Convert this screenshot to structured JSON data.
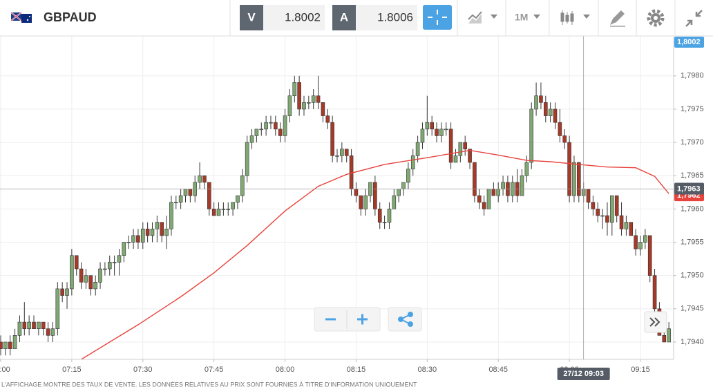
{
  "header": {
    "symbol": "GBPAUD",
    "sell_label": "V",
    "sell_price": "1.8002",
    "buy_label": "A",
    "buy_price": "1.8006",
    "timeframe": "1M"
  },
  "chart_data": {
    "type": "candlestick",
    "x": [
      "07:00",
      "07:01",
      "07:02",
      "07:03",
      "07:04",
      "07:05",
      "07:06",
      "07:07",
      "07:08",
      "07:09",
      "07:10",
      "07:11",
      "07:12",
      "07:13",
      "07:14",
      "07:15",
      "07:16",
      "07:17",
      "07:18",
      "07:19",
      "07:20",
      "07:21",
      "07:22",
      "07:23",
      "07:24",
      "07:25",
      "07:26",
      "07:27",
      "07:28",
      "07:29",
      "07:30",
      "07:31",
      "07:32",
      "07:33",
      "07:34",
      "07:35",
      "07:36",
      "07:37",
      "07:38",
      "07:39",
      "07:40",
      "07:41",
      "07:42",
      "07:43",
      "07:44",
      "07:45",
      "07:46",
      "07:47",
      "07:48",
      "07:49",
      "07:50",
      "07:51",
      "07:52",
      "07:53",
      "07:54",
      "07:55",
      "07:56",
      "07:57",
      "07:58",
      "07:59",
      "08:00",
      "08:01",
      "08:02",
      "08:03",
      "08:04",
      "08:05",
      "08:06",
      "08:07",
      "08:08",
      "08:09",
      "08:10",
      "08:11",
      "08:12",
      "08:13",
      "08:14",
      "08:15",
      "08:16",
      "08:17",
      "08:18",
      "08:19",
      "08:20",
      "08:21",
      "08:22",
      "08:23",
      "08:24",
      "08:25",
      "08:26",
      "08:27",
      "08:28",
      "08:29",
      "08:30",
      "08:31",
      "08:32",
      "08:33",
      "08:34",
      "08:35",
      "08:36",
      "08:37",
      "08:38",
      "08:39",
      "08:40",
      "08:41",
      "08:42",
      "08:43",
      "08:44",
      "08:45",
      "08:46",
      "08:47",
      "08:48",
      "08:49",
      "08:50",
      "08:51",
      "08:52",
      "08:53",
      "08:54",
      "08:55",
      "08:56",
      "08:57",
      "08:58",
      "08:59",
      "09:00",
      "09:01",
      "09:02",
      "09:03",
      "09:04",
      "09:05",
      "09:06",
      "09:07",
      "09:08",
      "09:09",
      "09:10",
      "09:11",
      "09:12",
      "09:13",
      "09:14",
      "09:15",
      "09:16",
      "09:17",
      "09:18",
      "09:19",
      "09:20",
      "09:21"
    ],
    "ohlc": [
      [
        1.794,
        1.7941,
        1.7938,
        1.7939
      ],
      [
        1.7939,
        1.794,
        1.7938,
        1.794
      ],
      [
        1.794,
        1.7941,
        1.7938,
        1.7939
      ],
      [
        1.7939,
        1.7942,
        1.7939,
        1.7941
      ],
      [
        1.7941,
        1.7944,
        1.794,
        1.7943
      ],
      [
        1.7943,
        1.7946,
        1.7941,
        1.7942
      ],
      [
        1.7942,
        1.7944,
        1.7941,
        1.7943
      ],
      [
        1.7943,
        1.7944,
        1.7942,
        1.7942
      ],
      [
        1.7942,
        1.7943,
        1.7941,
        1.7943
      ],
      [
        1.7943,
        1.7943,
        1.7941,
        1.7942
      ],
      [
        1.7942,
        1.7943,
        1.794,
        1.7941
      ],
      [
        1.7941,
        1.7943,
        1.794,
        1.7942
      ],
      [
        1.7942,
        1.7949,
        1.7941,
        1.7948
      ],
      [
        1.7948,
        1.7949,
        1.7946,
        1.7947
      ],
      [
        1.7947,
        1.7949,
        1.7945,
        1.7948
      ],
      [
        1.7948,
        1.7954,
        1.7947,
        1.7953
      ],
      [
        1.7953,
        1.7953,
        1.795,
        1.7951
      ],
      [
        1.7951,
        1.7952,
        1.7948,
        1.7949
      ],
      [
        1.7949,
        1.7951,
        1.7948,
        1.795
      ],
      [
        1.795,
        1.795,
        1.7947,
        1.7948
      ],
      [
        1.7948,
        1.795,
        1.7947,
        1.7949
      ],
      [
        1.7949,
        1.7952,
        1.7948,
        1.7951
      ],
      [
        1.7951,
        1.7952,
        1.795,
        1.7951
      ],
      [
        1.7951,
        1.7953,
        1.795,
        1.7952
      ],
      [
        1.7952,
        1.7953,
        1.795,
        1.7952
      ],
      [
        1.7952,
        1.7954,
        1.795,
        1.7953
      ],
      [
        1.7953,
        1.7955,
        1.7952,
        1.7955
      ],
      [
        1.7955,
        1.7956,
        1.7954,
        1.7955
      ],
      [
        1.7955,
        1.7957,
        1.7954,
        1.7956
      ],
      [
        1.7956,
        1.7957,
        1.7954,
        1.7955
      ],
      [
        1.7955,
        1.7958,
        1.7954,
        1.7957
      ],
      [
        1.7957,
        1.7958,
        1.7955,
        1.7956
      ],
      [
        1.7956,
        1.7958,
        1.7955,
        1.7957
      ],
      [
        1.7957,
        1.7959,
        1.7955,
        1.7958
      ],
      [
        1.7958,
        1.7958,
        1.7955,
        1.7956
      ],
      [
        1.7956,
        1.7959,
        1.7954,
        1.7957
      ],
      [
        1.7957,
        1.7962,
        1.7956,
        1.7961
      ],
      [
        1.7961,
        1.7962,
        1.796,
        1.7961
      ],
      [
        1.7961,
        1.7963,
        1.796,
        1.7962
      ],
      [
        1.7962,
        1.7963,
        1.7961,
        1.7963
      ],
      [
        1.7963,
        1.7963,
        1.7961,
        1.7962
      ],
      [
        1.7962,
        1.7965,
        1.7961,
        1.7964
      ],
      [
        1.7964,
        1.7967,
        1.7963,
        1.7965
      ],
      [
        1.7965,
        1.7965,
        1.7963,
        1.7964
      ],
      [
        1.7964,
        1.7964,
        1.7959,
        1.796
      ],
      [
        1.796,
        1.7961,
        1.7959,
        1.7959
      ],
      [
        1.7959,
        1.7961,
        1.7959,
        1.796
      ],
      [
        1.796,
        1.7961,
        1.7959,
        1.796
      ],
      [
        1.796,
        1.7961,
        1.7959,
        1.796
      ],
      [
        1.796,
        1.7961,
        1.7959,
        1.7961
      ],
      [
        1.7961,
        1.7962,
        1.796,
        1.7962
      ],
      [
        1.7962,
        1.7966,
        1.7961,
        1.7965
      ],
      [
        1.7965,
        1.7971,
        1.7964,
        1.797
      ],
      [
        1.797,
        1.7972,
        1.7969,
        1.7971
      ],
      [
        1.7971,
        1.7972,
        1.797,
        1.7972
      ],
      [
        1.7972,
        1.7973,
        1.7971,
        1.7972
      ],
      [
        1.7972,
        1.7974,
        1.7971,
        1.7973
      ],
      [
        1.7973,
        1.7974,
        1.7972,
        1.7973
      ],
      [
        1.7973,
        1.7974,
        1.7971,
        1.7972
      ],
      [
        1.7972,
        1.7973,
        1.797,
        1.7971
      ],
      [
        1.7971,
        1.7975,
        1.797,
        1.7974
      ],
      [
        1.7974,
        1.7978,
        1.7973,
        1.7977
      ],
      [
        1.7977,
        1.798,
        1.7976,
        1.7979
      ],
      [
        1.7979,
        1.798,
        1.7974,
        1.7975
      ],
      [
        1.7975,
        1.7977,
        1.7974,
        1.7976
      ],
      [
        1.7976,
        1.7977,
        1.7975,
        1.7976
      ],
      [
        1.7976,
        1.7978,
        1.7975,
        1.7977
      ],
      [
        1.7977,
        1.798,
        1.7975,
        1.7976
      ],
      [
        1.7976,
        1.7976,
        1.7973,
        1.7974
      ],
      [
        1.7974,
        1.7975,
        1.7972,
        1.7973
      ],
      [
        1.7973,
        1.7974,
        1.7967,
        1.7968
      ],
      [
        1.7968,
        1.7969,
        1.7967,
        1.7968
      ],
      [
        1.7968,
        1.797,
        1.7967,
        1.7969
      ],
      [
        1.7969,
        1.7969,
        1.7967,
        1.7968
      ],
      [
        1.7968,
        1.7969,
        1.7962,
        1.7963
      ],
      [
        1.7963,
        1.7964,
        1.7961,
        1.7962
      ],
      [
        1.7962,
        1.7962,
        1.7959,
        1.796
      ],
      [
        1.796,
        1.7963,
        1.7959,
        1.7962
      ],
      [
        1.7962,
        1.7964,
        1.7961,
        1.7964
      ],
      [
        1.7964,
        1.7965,
        1.7959,
        1.796
      ],
      [
        1.796,
        1.7961,
        1.7957,
        1.7958
      ],
      [
        1.7958,
        1.7959,
        1.7957,
        1.7958
      ],
      [
        1.7958,
        1.7961,
        1.7957,
        1.796
      ],
      [
        1.796,
        1.7963,
        1.796,
        1.7962
      ],
      [
        1.7962,
        1.7963,
        1.7961,
        1.7963
      ],
      [
        1.7963,
        1.7964,
        1.7962,
        1.7964
      ],
      [
        1.7964,
        1.7967,
        1.7963,
        1.7966
      ],
      [
        1.7966,
        1.7969,
        1.7965,
        1.7968
      ],
      [
        1.7968,
        1.7971,
        1.7967,
        1.797
      ],
      [
        1.797,
        1.7973,
        1.7969,
        1.7972
      ],
      [
        1.7972,
        1.7977,
        1.7971,
        1.7973
      ],
      [
        1.7973,
        1.7974,
        1.7971,
        1.7972
      ],
      [
        1.7972,
        1.7973,
        1.797,
        1.7971
      ],
      [
        1.7971,
        1.7973,
        1.797,
        1.7972
      ],
      [
        1.7972,
        1.7973,
        1.7971,
        1.7972
      ],
      [
        1.7972,
        1.7973,
        1.7966,
        1.7967
      ],
      [
        1.7967,
        1.7969,
        1.7967,
        1.7968
      ],
      [
        1.7968,
        1.797,
        1.7967,
        1.797
      ],
      [
        1.797,
        1.7971,
        1.7968,
        1.7969
      ],
      [
        1.7969,
        1.7969,
        1.7966,
        1.7967
      ],
      [
        1.7967,
        1.7967,
        1.7961,
        1.7962
      ],
      [
        1.7962,
        1.7963,
        1.796,
        1.7961
      ],
      [
        1.7961,
        1.7962,
        1.7959,
        1.796
      ],
      [
        1.796,
        1.7963,
        1.796,
        1.7963
      ],
      [
        1.7963,
        1.7964,
        1.7962,
        1.7962
      ],
      [
        1.7962,
        1.7964,
        1.7961,
        1.7963
      ],
      [
        1.7963,
        1.7965,
        1.7962,
        1.7964
      ],
      [
        1.7964,
        1.7965,
        1.7961,
        1.7962
      ],
      [
        1.7962,
        1.7965,
        1.7961,
        1.7964
      ],
      [
        1.7964,
        1.7966,
        1.7961,
        1.7962
      ],
      [
        1.7962,
        1.7966,
        1.7962,
        1.7965
      ],
      [
        1.7965,
        1.7968,
        1.7964,
        1.7967
      ],
      [
        1.7967,
        1.7976,
        1.7966,
        1.7975
      ],
      [
        1.7975,
        1.7979,
        1.7974,
        1.7977
      ],
      [
        1.7977,
        1.7979,
        1.7975,
        1.7976
      ],
      [
        1.7976,
        1.7977,
        1.7973,
        1.7974
      ],
      [
        1.7974,
        1.7976,
        1.7973,
        1.7975
      ],
      [
        1.7975,
        1.7976,
        1.7972,
        1.7973
      ],
      [
        1.7973,
        1.7975,
        1.797,
        1.7971
      ],
      [
        1.7971,
        1.7972,
        1.7969,
        1.797
      ],
      [
        1.797,
        1.7971,
        1.7961,
        1.7962
      ],
      [
        1.7962,
        1.7968,
        1.7961,
        1.7967
      ],
      [
        1.7967,
        1.7967,
        1.7961,
        1.7962
      ],
      [
        1.7962,
        1.7964,
        1.7961,
        1.7963
      ],
      [
        1.7963,
        1.7963,
        1.796,
        1.7961
      ],
      [
        1.7961,
        1.7962,
        1.7959,
        1.796
      ],
      [
        1.796,
        1.7961,
        1.7958,
        1.7959
      ],
      [
        1.7959,
        1.796,
        1.7957,
        1.7959
      ],
      [
        1.7959,
        1.7961,
        1.7956,
        1.7958
      ],
      [
        1.7958,
        1.7962,
        1.7956,
        1.7962
      ],
      [
        1.7962,
        1.7962,
        1.7958,
        1.7959
      ],
      [
        1.7959,
        1.7961,
        1.7956,
        1.7957
      ],
      [
        1.7957,
        1.7959,
        1.7956,
        1.7958
      ],
      [
        1.7958,
        1.7958,
        1.7956,
        1.7956
      ],
      [
        1.7956,
        1.7957,
        1.7953,
        1.7954
      ],
      [
        1.7954,
        1.7956,
        1.7953,
        1.7955
      ],
      [
        1.7955,
        1.7957,
        1.7954,
        1.7956
      ],
      [
        1.7956,
        1.7956,
        1.7949,
        1.795
      ],
      [
        1.795,
        1.7951,
        1.7944,
        1.7945
      ],
      [
        1.7945,
        1.7946,
        1.7941,
        1.7941
      ],
      [
        1.7941,
        1.7942,
        1.794,
        1.794
      ],
      [
        1.794,
        1.7943,
        1.794,
        1.7942
      ]
    ],
    "up_color": "#7fa873",
    "down_color": "#a63a28",
    "ma": {
      "color": "#e8423c",
      "x": [
        "07:17",
        "07:29",
        "07:38",
        "07:45",
        "07:52",
        "08:00",
        "08:07",
        "08:13",
        "08:21",
        "08:30",
        "08:39",
        "08:45",
        "08:51",
        "08:56",
        "09:02",
        "09:08",
        "09:14",
        "09:18",
        "09:21"
      ],
      "values": [
        1.79374,
        1.79426,
        1.79468,
        1.79504,
        1.79545,
        1.79597,
        1.79634,
        1.79652,
        1.79667,
        1.79677,
        1.79688,
        1.79681,
        1.79673,
        1.79671,
        1.79667,
        1.79663,
        1.79662,
        1.79649,
        1.79623
      ]
    },
    "xlim": [
      "07:00",
      "09:22"
    ],
    "xticks": [
      "07:00",
      "07:15",
      "07:30",
      "07:45",
      "08:00",
      "08:15",
      "08:30",
      "08:45",
      "09:00",
      "09:15"
    ],
    "ylim": [
      1.79374,
      1.7986
    ],
    "yticks": [
      {
        "value": 1.794,
        "label": "1,7940"
      },
      {
        "value": 1.7945,
        "label": "1,7945"
      },
      {
        "value": 1.795,
        "label": "1,7950"
      },
      {
        "value": 1.7955,
        "label": "1,7955"
      },
      {
        "value": 1.796,
        "label": "1,7960"
      },
      {
        "value": 1.7965,
        "label": "1,7965"
      },
      {
        "value": 1.797,
        "label": "1,7970"
      },
      {
        "value": 1.7975,
        "label": "1,7975"
      },
      {
        "value": 1.798,
        "label": "1,7980"
      }
    ],
    "grid": true,
    "sell_marker": {
      "value": 1.8002,
      "label": "1,8002"
    },
    "ma_marker": {
      "value": 1.7962,
      "label": "1,7962"
    },
    "crosshair": {
      "x": "09:03",
      "y": 1.7963,
      "x_label": "27/12 09:03",
      "y_label": "1,7963"
    }
  },
  "footer_note": "L'AFFICHAGE MONTRE DES TAUX DE VENTE. LES DONNÉES RELATIVES AU PRIX SONT FOURNIES À TITRE D'INFORMATION UNIQUEMENT"
}
